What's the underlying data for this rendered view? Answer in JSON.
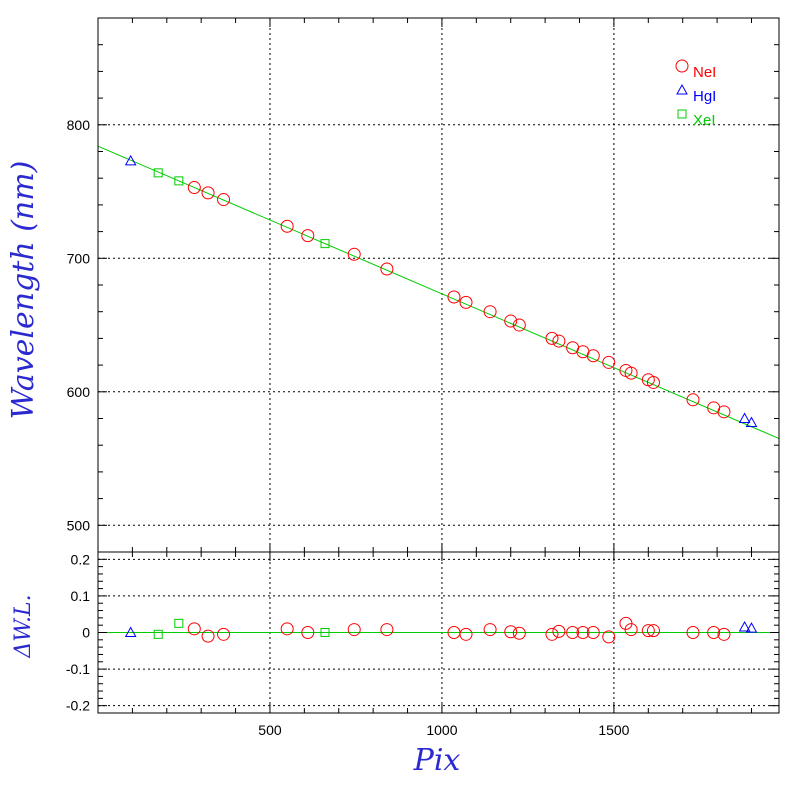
{
  "chart_data": [
    {
      "type": "scatter",
      "panel": "main",
      "ylabel": "Wavelength (nm)",
      "xlim": [
        0,
        1980
      ],
      "ylim": [
        480,
        880
      ],
      "xticks": [
        500,
        1000,
        1500
      ],
      "yticks": [
        500,
        600,
        700,
        800
      ],
      "grid": true,
      "legend_placement": "top-right",
      "fit_line": {
        "x": [
          0,
          1980
        ],
        "y": [
          784,
          565
        ],
        "color": "#00cc00"
      },
      "series": [
        {
          "name": "NeI",
          "marker": "circle",
          "color": "#ff0000",
          "x": [
            280,
            320,
            365,
            550,
            610,
            745,
            840,
            1035,
            1070,
            1140,
            1200,
            1225,
            1320,
            1340,
            1380,
            1410,
            1440,
            1485,
            1535,
            1550,
            1600,
            1615,
            1730,
            1790,
            1820
          ],
          "y": [
            753,
            749,
            744,
            724,
            717,
            703,
            692,
            671,
            667,
            660,
            653,
            650,
            640,
            638,
            633,
            630,
            627,
            622,
            616,
            614,
            609,
            607,
            594,
            588,
            585
          ]
        },
        {
          "name": "HgI",
          "marker": "triangle",
          "color": "#0000ff",
          "x": [
            95,
            1880,
            1900
          ],
          "y": [
            773,
            580,
            577
          ]
        },
        {
          "name": "XeI",
          "marker": "square",
          "color": "#00cc00",
          "x": [
            175,
            235,
            660
          ],
          "y": [
            764,
            758,
            711
          ]
        }
      ]
    },
    {
      "type": "scatter",
      "panel": "residual",
      "xlabel": "Pix",
      "ylabel": "ΔW.L.",
      "xlim": [
        0,
        1980
      ],
      "ylim": [
        -0.22,
        0.22
      ],
      "xticks": [
        500,
        1000,
        1500
      ],
      "yticks": [
        -0.2,
        -0.1,
        0,
        0.1,
        0.2
      ],
      "ytick_labels": [
        "-0.2",
        "-0.1",
        "0",
        "0.1",
        "0.2"
      ],
      "xtick_labels": [
        "500",
        "1000",
        "1500"
      ],
      "ytick_labels_main": [
        "500",
        "600",
        "700",
        "800"
      ],
      "grid": true,
      "zero_line_color": "#00cc00",
      "series": [
        {
          "name": "NeI",
          "marker": "circle",
          "color": "#ff0000",
          "x": [
            280,
            320,
            365,
            550,
            610,
            745,
            840,
            1035,
            1070,
            1140,
            1200,
            1225,
            1320,
            1340,
            1380,
            1410,
            1440,
            1485,
            1535,
            1550,
            1600,
            1615,
            1730,
            1790,
            1820
          ],
          "y": [
            0.01,
            -0.01,
            -0.005,
            0.01,
            0.0,
            0.008,
            0.008,
            0.0,
            -0.005,
            0.008,
            0.002,
            -0.002,
            -0.005,
            0.003,
            0.0,
            0.0,
            0.0,
            -0.012,
            0.025,
            0.008,
            0.005,
            0.005,
            0.0,
            0.0,
            -0.005
          ]
        },
        {
          "name": "HgI",
          "marker": "triangle",
          "color": "#0000ff",
          "x": [
            95,
            1880,
            1900
          ],
          "y": [
            0.0,
            0.015,
            0.012
          ]
        },
        {
          "name": "XeI",
          "marker": "square",
          "color": "#00cc00",
          "x": [
            175,
            235,
            660
          ],
          "y": [
            -0.005,
            0.025,
            0.0
          ]
        }
      ]
    }
  ]
}
